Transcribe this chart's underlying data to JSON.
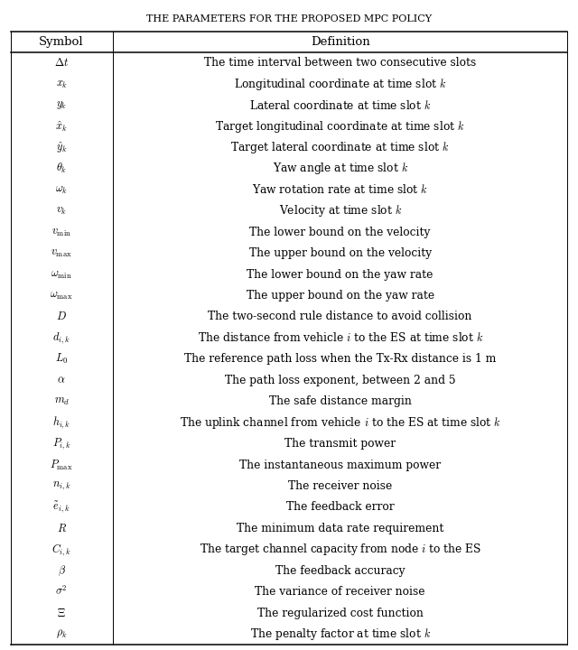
{
  "title": "THE PARAMETERS FOR THE PROPOSED MPC POLICY",
  "symbol_latex": [
    "$\\Delta t$",
    "$x_k$",
    "$y_k$",
    "$\\hat{x}_k$",
    "$\\hat{y}_k$",
    "$\\theta_k$",
    "$\\omega_k$",
    "$v_k$",
    "$v_{\\mathrm{min}}$",
    "$v_{\\mathrm{max}}$",
    "$\\omega_{\\mathrm{min}}$",
    "$\\omega_{\\mathrm{max}}$",
    "$D$",
    "$d_{i,k}$",
    "$L_0$",
    "$\\alpha$",
    "$m_d$",
    "$h_{i,k}$",
    "$P_{i,k}$",
    "$P_{\\mathrm{max}}$",
    "$n_{i,k}$",
    "$\\tilde{e}_{i,k}$",
    "$R$",
    "$C_{i,k}$",
    "$\\beta$",
    "$\\sigma^2$",
    "$\\Xi$",
    "$\\rho_k$"
  ],
  "definition_text": [
    "The time interval between two consecutive slots",
    "Longitudinal coordinate at time slot $k$",
    "Lateral coordinate at time slot $k$",
    "Target longitudinal coordinate at time slot $k$",
    "Target lateral coordinate at time slot $k$",
    "Yaw angle at time slot $k$",
    "Yaw rotation rate at time slot $k$",
    "Velocity at time slot $k$",
    "The lower bound on the velocity",
    "The upper bound on the velocity",
    "The lower bound on the yaw rate",
    "The upper bound on the yaw rate",
    "The two-second rule distance to avoid collision",
    "The distance from vehicle $i$ to the ES at time slot $k$",
    "The reference path loss when the Tx-Rx distance is 1 m",
    "The path loss exponent, between 2 and 5",
    "The safe distance margin",
    "The uplink channel from vehicle $i$ to the ES at time slot $k$",
    "The transmit power",
    "The instantaneous maximum power",
    "The receiver noise",
    "The feedback error",
    "The minimum data rate requirement",
    "The target channel capacity from node $i$ to the ES",
    "The feedback accuracy",
    "The variance of receiver noise",
    "The regularized cost function",
    "The penalty factor at time slot $k$"
  ],
  "title_fontsize": 8.0,
  "header_fontsize": 9.5,
  "body_fontsize": 8.8,
  "fig_width": 6.4,
  "fig_height": 7.2,
  "dpi": 100
}
